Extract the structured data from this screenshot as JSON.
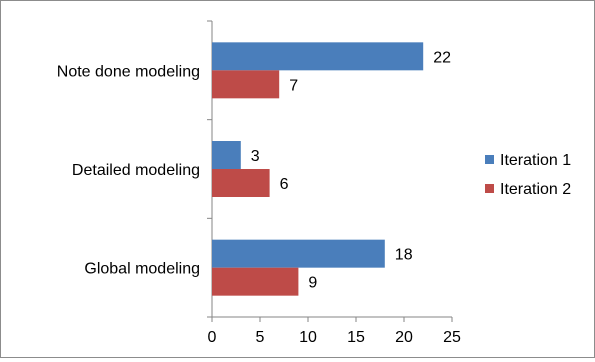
{
  "chart_data": {
    "type": "bar",
    "orientation": "horizontal",
    "categories": [
      "Global modeling",
      "Detailed modeling",
      "Note done modeling"
    ],
    "series": [
      {
        "name": "Iteration 1",
        "values": [
          18,
          3,
          22
        ],
        "color": "#4a7ebb"
      },
      {
        "name": "Iteration 2",
        "values": [
          9,
          6,
          7
        ],
        "color": "#be4b48"
      }
    ],
    "xlim": [
      0,
      25
    ],
    "xticks": [
      0,
      5,
      10,
      15,
      20,
      25
    ],
    "grid": false,
    "legend_position": "right",
    "data_labels": true
  }
}
